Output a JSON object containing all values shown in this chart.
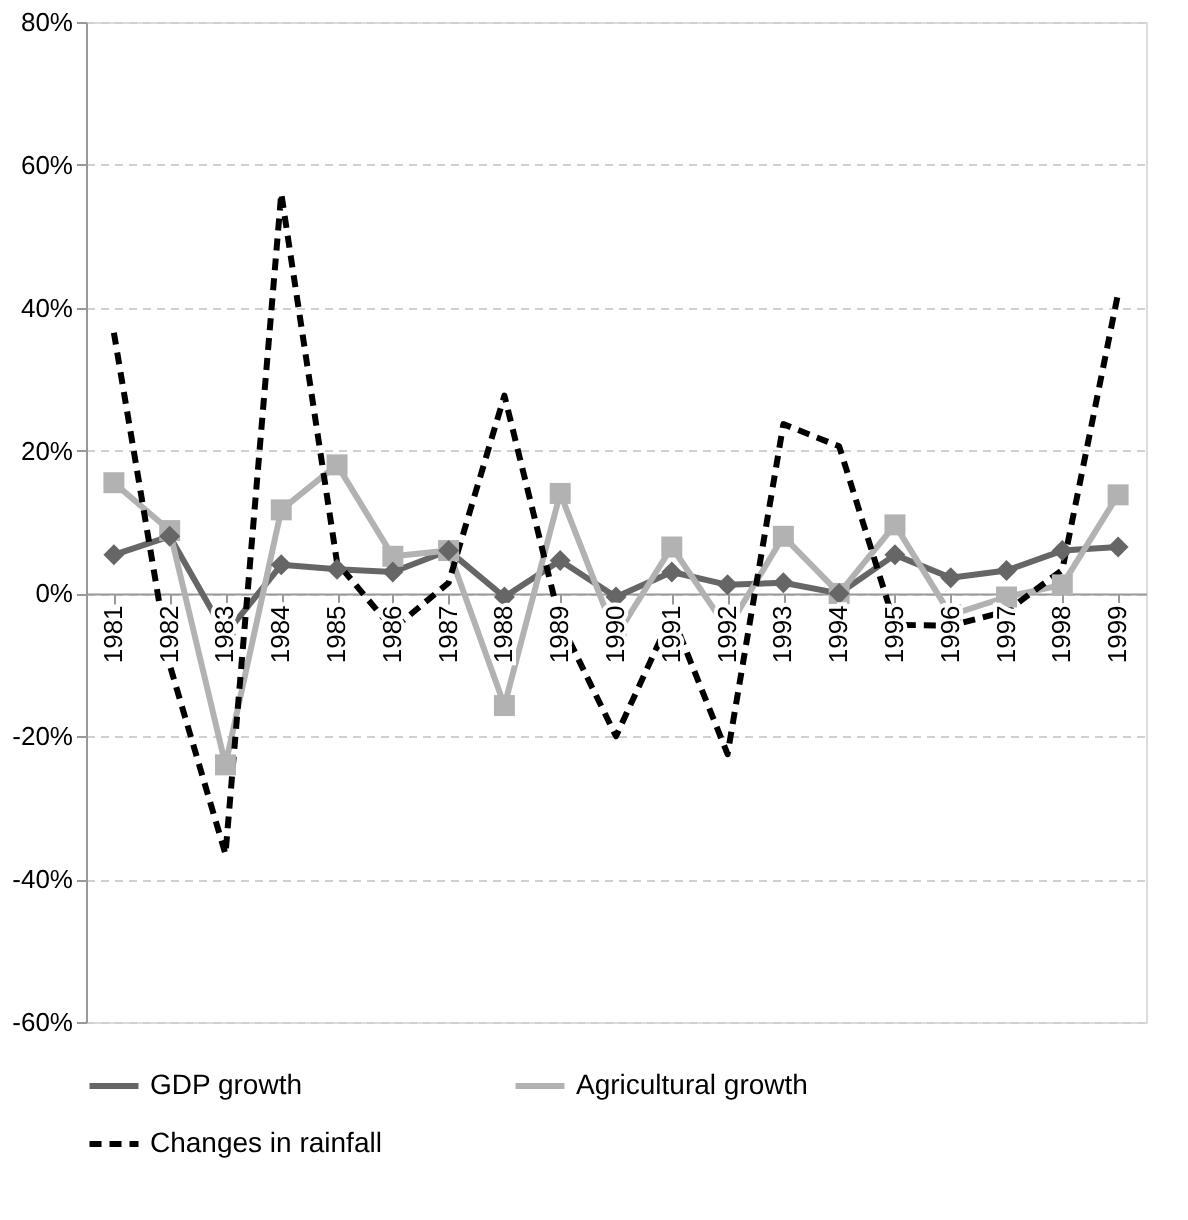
{
  "chart_data": {
    "type": "line",
    "categories": [
      "1981",
      "1982",
      "1983",
      "1984",
      "1985",
      "1986",
      "1987",
      "1988",
      "1989",
      "1990",
      "1991",
      "1992",
      "1993",
      "1994",
      "1995",
      "1996",
      "1997",
      "1998",
      "1999"
    ],
    "series": [
      {
        "name": "GDP growth",
        "color": "#666666",
        "marker": "diamond",
        "line_style": "solid",
        "values": [
          5.4,
          8,
          -5.7,
          4,
          3.4,
          3,
          6,
          -0.5,
          4.6,
          -0.5,
          3,
          1.2,
          1.5,
          0,
          5.4,
          2.2,
          3.2,
          6,
          6.5
        ]
      },
      {
        "name": "Agricultural growth",
        "color": "#b2b2b2",
        "marker": "square",
        "line_style": "solid",
        "values": [
          15.5,
          8.8,
          -24,
          11.7,
          18,
          5.2,
          6,
          -15.7,
          14,
          -6,
          6.5,
          -5,
          8,
          0,
          9.6,
          -3,
          -0.5,
          1.2,
          13.8
        ]
      },
      {
        "name": "Changes in rainfall",
        "color": "#000000",
        "marker": "none",
        "line_style": "dashed",
        "values": [
          36.5,
          -10,
          -36.5,
          56,
          4.3,
          -5,
          1.5,
          27.7,
          -4,
          -20,
          -3,
          -22.5,
          23.7,
          20.6,
          -4.4,
          -4.5,
          -2.5,
          3.3,
          42
        ]
      }
    ],
    "ylim": [
      -60,
      80
    ],
    "yticks": [
      {
        "value": -60,
        "label": "-60%"
      },
      {
        "value": -40,
        "label": "-40%"
      },
      {
        "value": -20,
        "label": "-20%"
      },
      {
        "value": 0,
        "label": "0%"
      },
      {
        "value": 20,
        "label": "20%"
      },
      {
        "value": 40,
        "label": "40%"
      },
      {
        "value": 60,
        "label": "60%"
      },
      {
        "value": 80,
        "label": "80%"
      }
    ],
    "grid": "y",
    "legend": "bottom"
  }
}
